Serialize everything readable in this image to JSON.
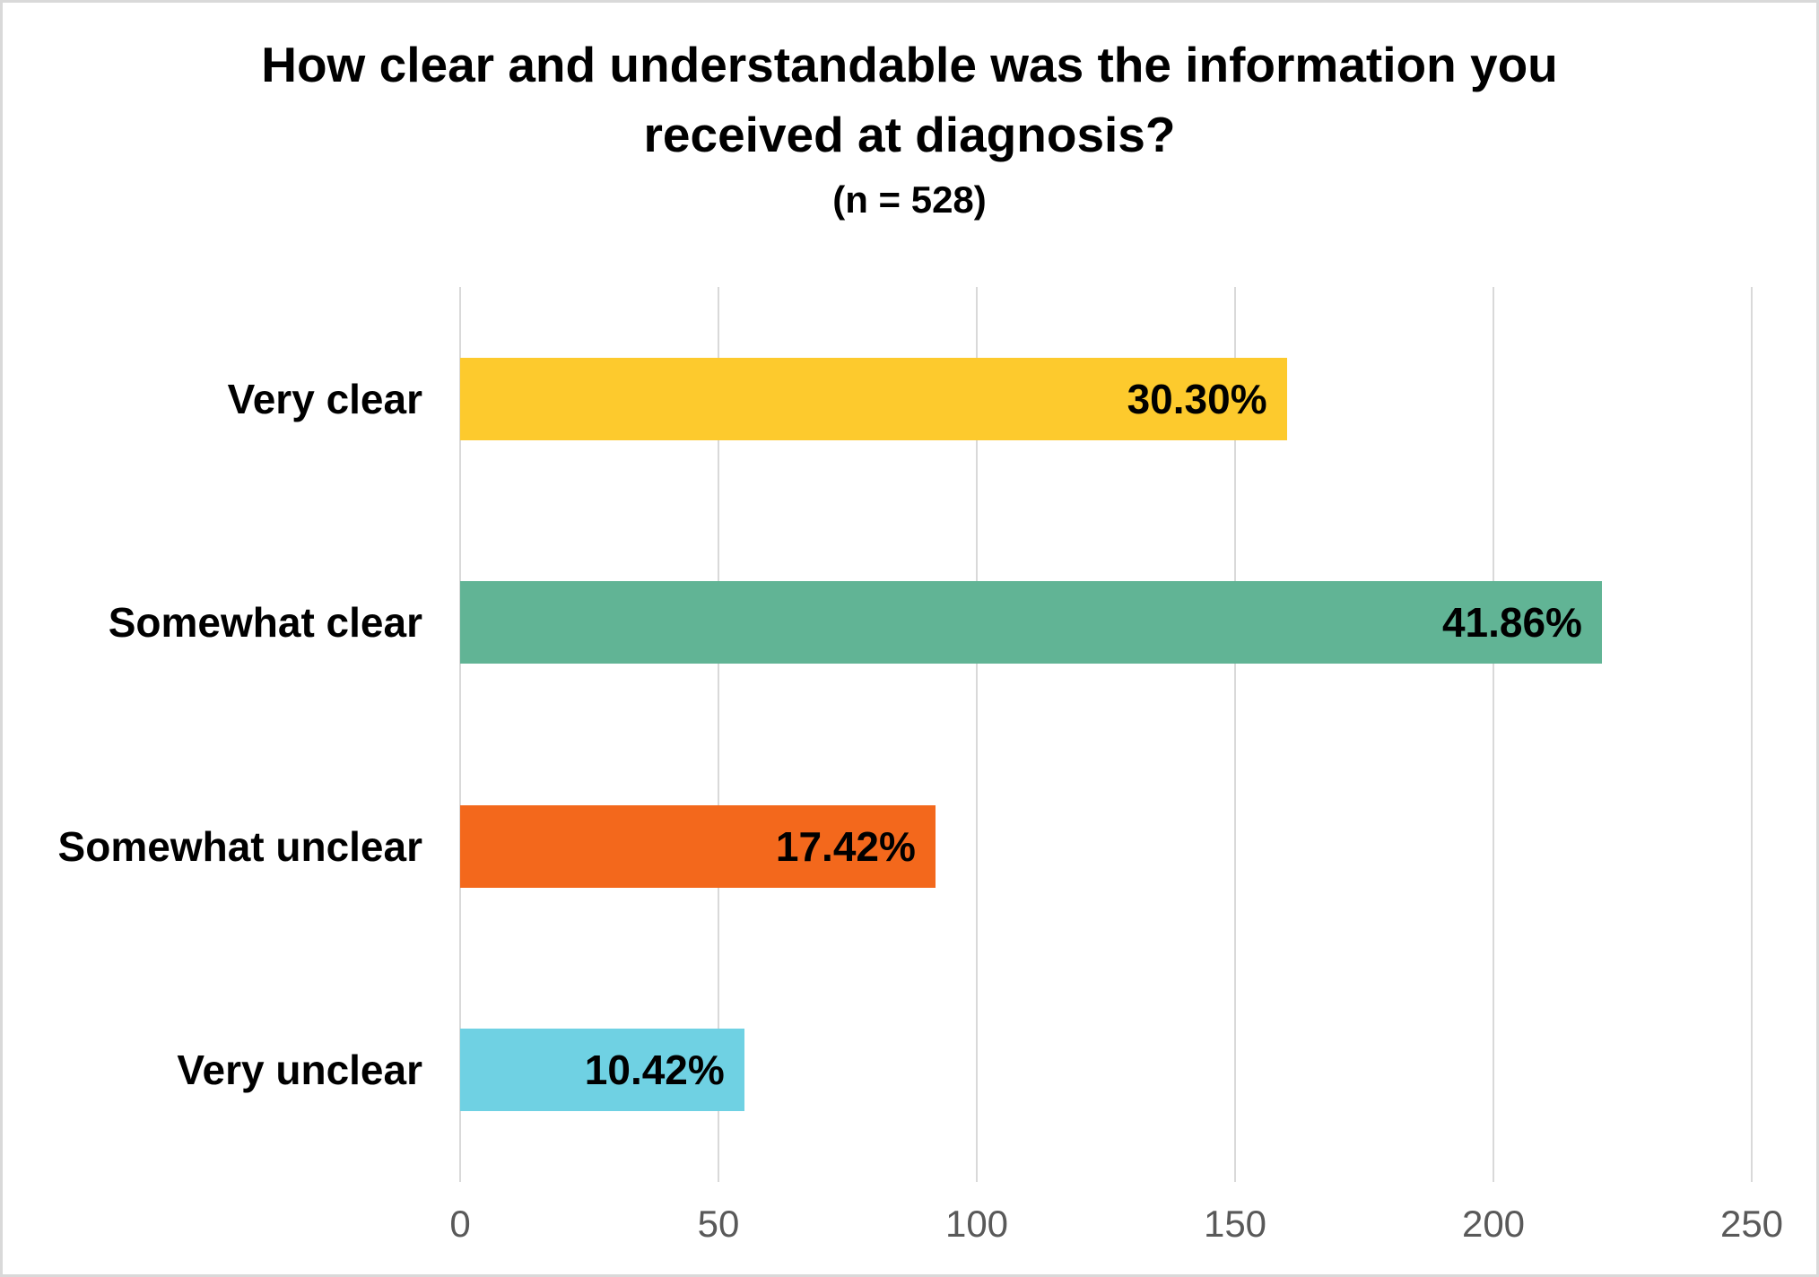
{
  "page": {
    "background": "#ffffff",
    "border_color": "#d9d9d9"
  },
  "chart_data": {
    "type": "bar",
    "orientation": "horizontal",
    "title": "How clear and understandable was the information you received at diagnosis?",
    "subtitle": "(n = 528)",
    "sample_size": 528,
    "categories": [
      "Very clear",
      "Somewhat clear",
      "Somewhat unclear",
      "Very unclear"
    ],
    "values": [
      160,
      221,
      92,
      55
    ],
    "data_labels": [
      "30.30%",
      "41.86%",
      "17.42%",
      "10.42%"
    ],
    "bar_colors": [
      "#fdca2d",
      "#61b495",
      "#f3681c",
      "#6fd1e3"
    ],
    "xlabel": "",
    "ylabel": "",
    "xlim": [
      0,
      250
    ],
    "xticks": [
      "0",
      "50",
      "100",
      "150",
      "200",
      "250"
    ],
    "grid": "vertical",
    "gridline_color": "#d9d9d9",
    "tick_label_color": "#595959",
    "label_position": "inside-end",
    "legend": "none"
  }
}
